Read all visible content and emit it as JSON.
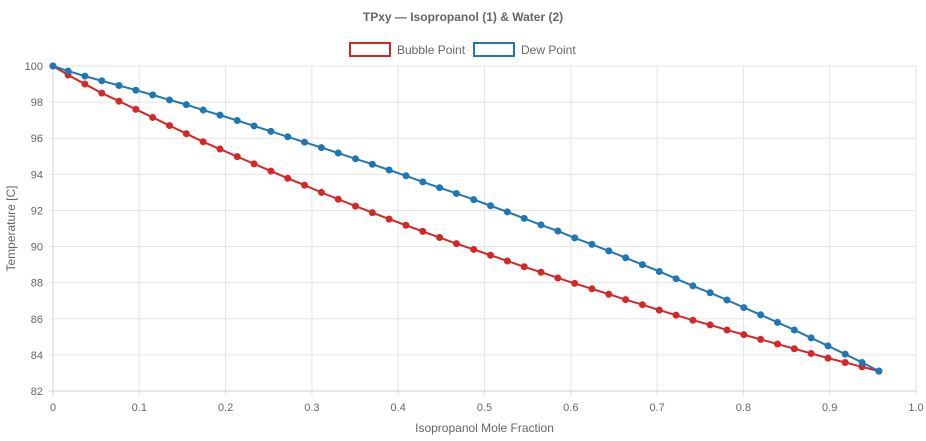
{
  "chart_data": {
    "type": "line",
    "title": "TPxy — Isopropanol (1) & Water (2)",
    "xlabel": "Isopropanol Mole Fraction",
    "ylabel": "Temperature [C]",
    "xlim": [
      0,
      1.0
    ],
    "ylim": [
      82,
      100
    ],
    "xticks": [
      "0",
      "0.1",
      "0.2",
      "0.3",
      "0.4",
      "0.5",
      "0.6",
      "0.7",
      "0.8",
      "0.9",
      "1.0"
    ],
    "yticks": [
      "82",
      "84",
      "86",
      "88",
      "90",
      "92",
      "94",
      "96",
      "98",
      "100"
    ],
    "grid": true,
    "legend_position": "top-center",
    "series": [
      {
        "name": "Bubble Point",
        "color": "#d62728",
        "x": [
          0.0,
          0.0175,
          0.037,
          0.0565,
          0.0765,
          0.096,
          0.1155,
          0.135,
          0.1545,
          0.174,
          0.1935,
          0.2135,
          0.233,
          0.2525,
          0.272,
          0.2915,
          0.311,
          0.3305,
          0.3505,
          0.37,
          0.3895,
          0.409,
          0.4285,
          0.448,
          0.4675,
          0.4875,
          0.507,
          0.5265,
          0.546,
          0.5655,
          0.585,
          0.6045,
          0.6245,
          0.644,
          0.6635,
          0.683,
          0.7025,
          0.722,
          0.7415,
          0.7615,
          0.781,
          0.8005,
          0.82,
          0.8395,
          0.859,
          0.8785,
          0.898,
          0.918,
          0.9375,
          0.957
        ],
        "y": [
          100.0,
          99.5,
          99.0,
          98.5,
          98.05,
          97.6,
          97.15,
          96.7,
          96.25,
          95.8,
          95.4,
          94.98,
          94.58,
          94.18,
          93.78,
          93.4,
          93.0,
          92.62,
          92.24,
          91.88,
          91.52,
          91.18,
          90.84,
          90.5,
          90.16,
          89.84,
          89.52,
          89.2,
          88.88,
          88.58,
          88.26,
          87.96,
          87.66,
          87.36,
          87.06,
          86.78,
          86.48,
          86.2,
          85.92,
          85.66,
          85.38,
          85.12,
          84.86,
          84.6,
          84.34,
          84.08,
          83.82,
          83.58,
          83.34,
          83.1
        ]
      },
      {
        "name": "Dew Point",
        "color": "#1f77b4",
        "x": [
          0.0,
          0.0175,
          0.037,
          0.0565,
          0.0765,
          0.096,
          0.1155,
          0.135,
          0.1545,
          0.174,
          0.1935,
          0.2135,
          0.233,
          0.2525,
          0.272,
          0.2915,
          0.311,
          0.3305,
          0.3505,
          0.37,
          0.3895,
          0.409,
          0.4285,
          0.448,
          0.4675,
          0.4875,
          0.507,
          0.5265,
          0.546,
          0.5655,
          0.585,
          0.6045,
          0.6245,
          0.644,
          0.6635,
          0.683,
          0.7025,
          0.722,
          0.7415,
          0.7615,
          0.781,
          0.8005,
          0.82,
          0.8395,
          0.859,
          0.8785,
          0.898,
          0.918,
          0.9375,
          0.957
        ],
        "y": [
          100.0,
          99.72,
          99.44,
          99.18,
          98.92,
          98.66,
          98.4,
          98.12,
          97.86,
          97.56,
          97.28,
          96.98,
          96.68,
          96.38,
          96.08,
          95.78,
          95.48,
          95.18,
          94.86,
          94.56,
          94.24,
          93.92,
          93.58,
          93.26,
          92.94,
          92.6,
          92.26,
          91.92,
          91.56,
          91.2,
          90.86,
          90.48,
          90.12,
          89.76,
          89.38,
          89.0,
          88.62,
          88.22,
          87.82,
          87.44,
          87.04,
          86.62,
          86.22,
          85.8,
          85.38,
          84.94,
          84.5,
          84.04,
          83.58,
          83.1
        ]
      }
    ]
  }
}
